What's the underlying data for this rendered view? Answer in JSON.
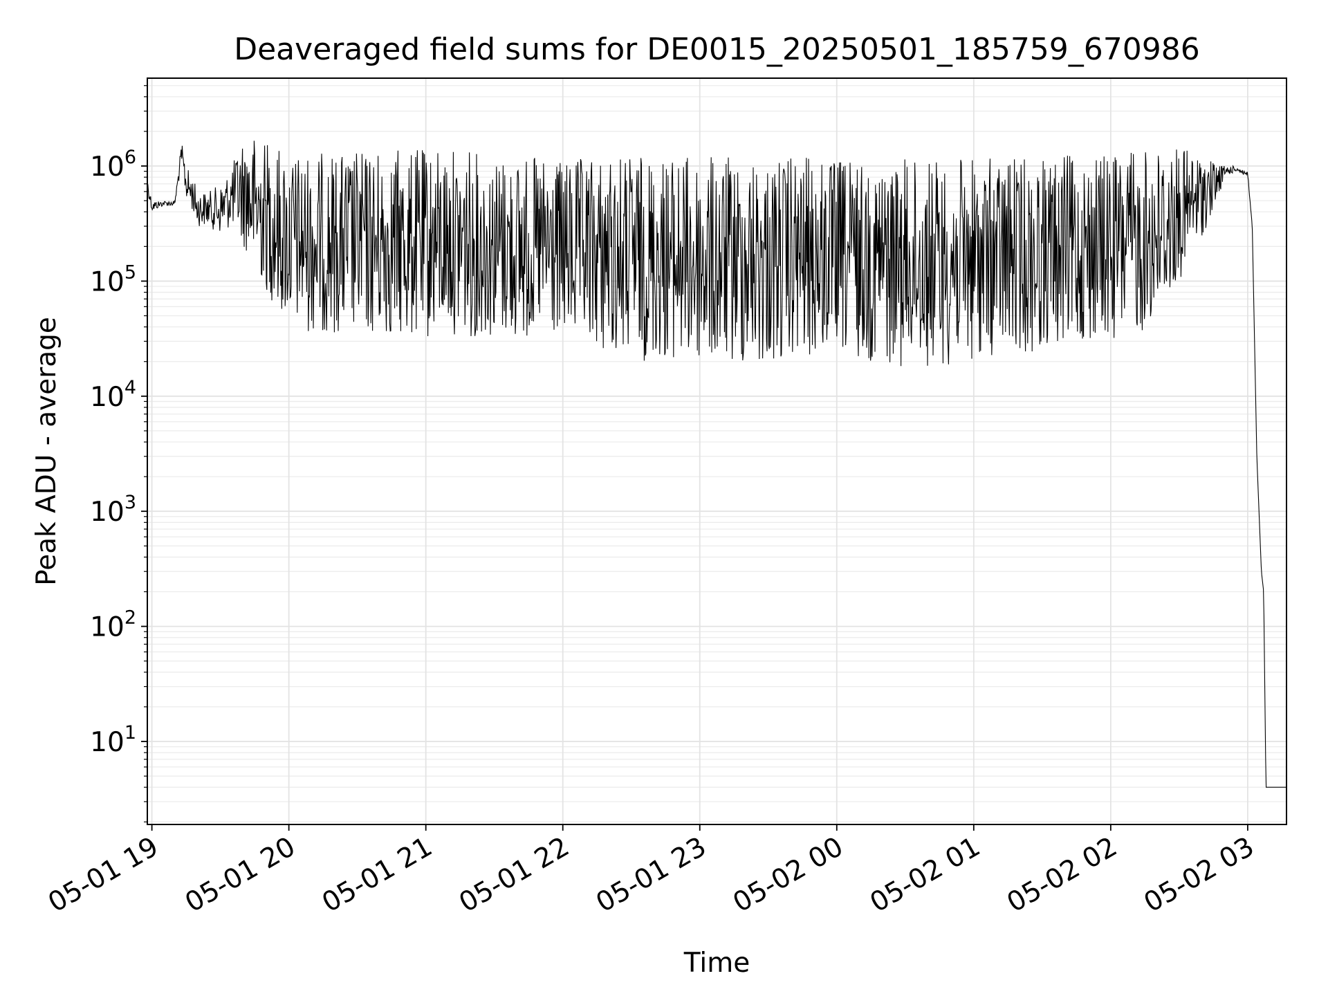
{
  "chart_data": {
    "type": "line",
    "title": "Deaveraged field sums for DE0015_20250501_185759_670986",
    "xlabel": "Time",
    "ylabel": "Peak ADU - average",
    "yscale": "log",
    "ylim": [
      1.9,
      5800000
    ],
    "xlim": [
      "2025-05-01 18:58:00",
      "2025-05-02 03:17:00"
    ],
    "x_ticks": [
      "05-01 19",
      "05-01 20",
      "05-01 21",
      "05-01 22",
      "05-01 23",
      "05-02 00",
      "05-02 01",
      "05-02 02",
      "05-02 03"
    ],
    "x_tick_times": [
      "2025-05-01 19:00",
      "2025-05-01 20:00",
      "2025-05-01 21:00",
      "2025-05-01 22:00",
      "2025-05-01 23:00",
      "2025-05-02 00:00",
      "2025-05-02 01:00",
      "2025-05-02 02:00",
      "2025-05-02 03:00"
    ],
    "y_ticks": [
      {
        "base": "10",
        "exp": "1",
        "value": 10
      },
      {
        "base": "10",
        "exp": "2",
        "value": 100
      },
      {
        "base": "10",
        "exp": "3",
        "value": 1000
      },
      {
        "base": "10",
        "exp": "4",
        "value": 10000
      },
      {
        "base": "10",
        "exp": "5",
        "value": 100000
      },
      {
        "base": "10",
        "exp": "6",
        "value": 1000000
      }
    ],
    "grid": true,
    "line_color": "#000000",
    "series": [
      {
        "x_times": [
          "2025-05-01 18:58",
          "2025-05-01 19:00",
          "2025-05-01 19:05",
          "2025-05-01 19:10",
          "2025-05-01 19:13",
          "2025-05-01 19:15",
          "2025-05-01 19:18",
          "2025-05-01 19:20",
          "2025-05-01 19:25",
          "2025-05-01 19:30",
          "2025-05-01 19:35",
          "2025-05-01 19:40",
          "2025-05-01 19:45",
          "2025-05-01 19:50",
          "2025-05-01 19:55",
          "2025-05-01 20:00",
          "2025-05-01 20:10",
          "2025-05-01 20:20",
          "2025-05-01 20:30",
          "2025-05-01 20:45",
          "2025-05-01 21:00",
          "2025-05-01 21:10",
          "2025-05-01 21:20",
          "2025-05-01 21:30",
          "2025-05-01 21:45",
          "2025-05-01 22:00",
          "2025-05-01 22:15",
          "2025-05-01 22:30",
          "2025-05-01 22:45",
          "2025-05-01 23:00",
          "2025-05-01 23:15",
          "2025-05-01 23:30",
          "2025-05-01 23:45",
          "2025-05-02 00:00",
          "2025-05-02 00:15",
          "2025-05-02 00:30",
          "2025-05-02 00:45",
          "2025-05-02 01:00",
          "2025-05-02 01:15",
          "2025-05-02 01:30",
          "2025-05-02 01:45",
          "2025-05-02 02:00",
          "2025-05-02 02:15",
          "2025-05-02 02:25",
          "2025-05-02 02:35",
          "2025-05-02 02:45",
          "2025-05-02 02:50",
          "2025-05-02 02:55",
          "2025-05-02 03:00",
          "2025-05-02 03:02",
          "2025-05-02 03:04",
          "2025-05-02 03:06",
          "2025-05-02 03:07",
          "2025-05-02 03:08",
          "2025-05-02 03:17"
        ],
        "values": [
          700000,
          450000,
          480000,
          480000,
          1500000,
          900000,
          700000,
          500000,
          450000,
          400000,
          600000,
          1200000,
          1500000,
          400000,
          120000,
          60000,
          40000,
          45000,
          40000,
          50000,
          45000,
          60000,
          50000,
          50000,
          45000,
          40000,
          40000,
          35000,
          30000,
          28000,
          25000,
          25000,
          28000,
          32000,
          35000,
          28000,
          25000,
          25000,
          28000,
          30000,
          35000,
          45000,
          60000,
          120000,
          250000,
          600000,
          900000,
          1000000,
          900000,
          300000,
          3000,
          300,
          200,
          4,
          4
        ],
        "upper_values": [
          800000,
          500000,
          500000,
          500000,
          1600000,
          1000000,
          800000,
          600000,
          600000,
          700000,
          1000000,
          1800000,
          1800000,
          1700000,
          1500000,
          1300000,
          1300000,
          1300000,
          1350000,
          1400000,
          1400000,
          1450000,
          1350000,
          1250000,
          1200000,
          1100000,
          1200000,
          1250000,
          1250000,
          1200000,
          1200000,
          1200000,
          1200000,
          1150000,
          1100000,
          1150000,
          1150000,
          1150000,
          1200000,
          1200000,
          1250000,
          1300000,
          1400000,
          1500000,
          1400000,
          1100000,
          1000000,
          1000000,
          900000,
          300000,
          3000,
          300,
          200,
          4,
          4
        ],
        "lower_values": [
          600000,
          400000,
          450000,
          450000,
          1000000,
          500000,
          400000,
          300000,
          300000,
          250000,
          300000,
          200000,
          120000,
          80000,
          55000,
          40000,
          35000,
          35000,
          32000,
          32000,
          30000,
          35000,
          32000,
          32000,
          30000,
          30000,
          25000,
          20000,
          20000,
          18000,
          18000,
          18000,
          20000,
          22000,
          20000,
          18000,
          18000,
          20000,
          22000,
          25000,
          28000,
          30000,
          35000,
          60000,
          150000,
          400000,
          800000,
          900000,
          800000,
          300000,
          3000,
          300,
          200,
          4,
          4
        ]
      }
    ]
  }
}
